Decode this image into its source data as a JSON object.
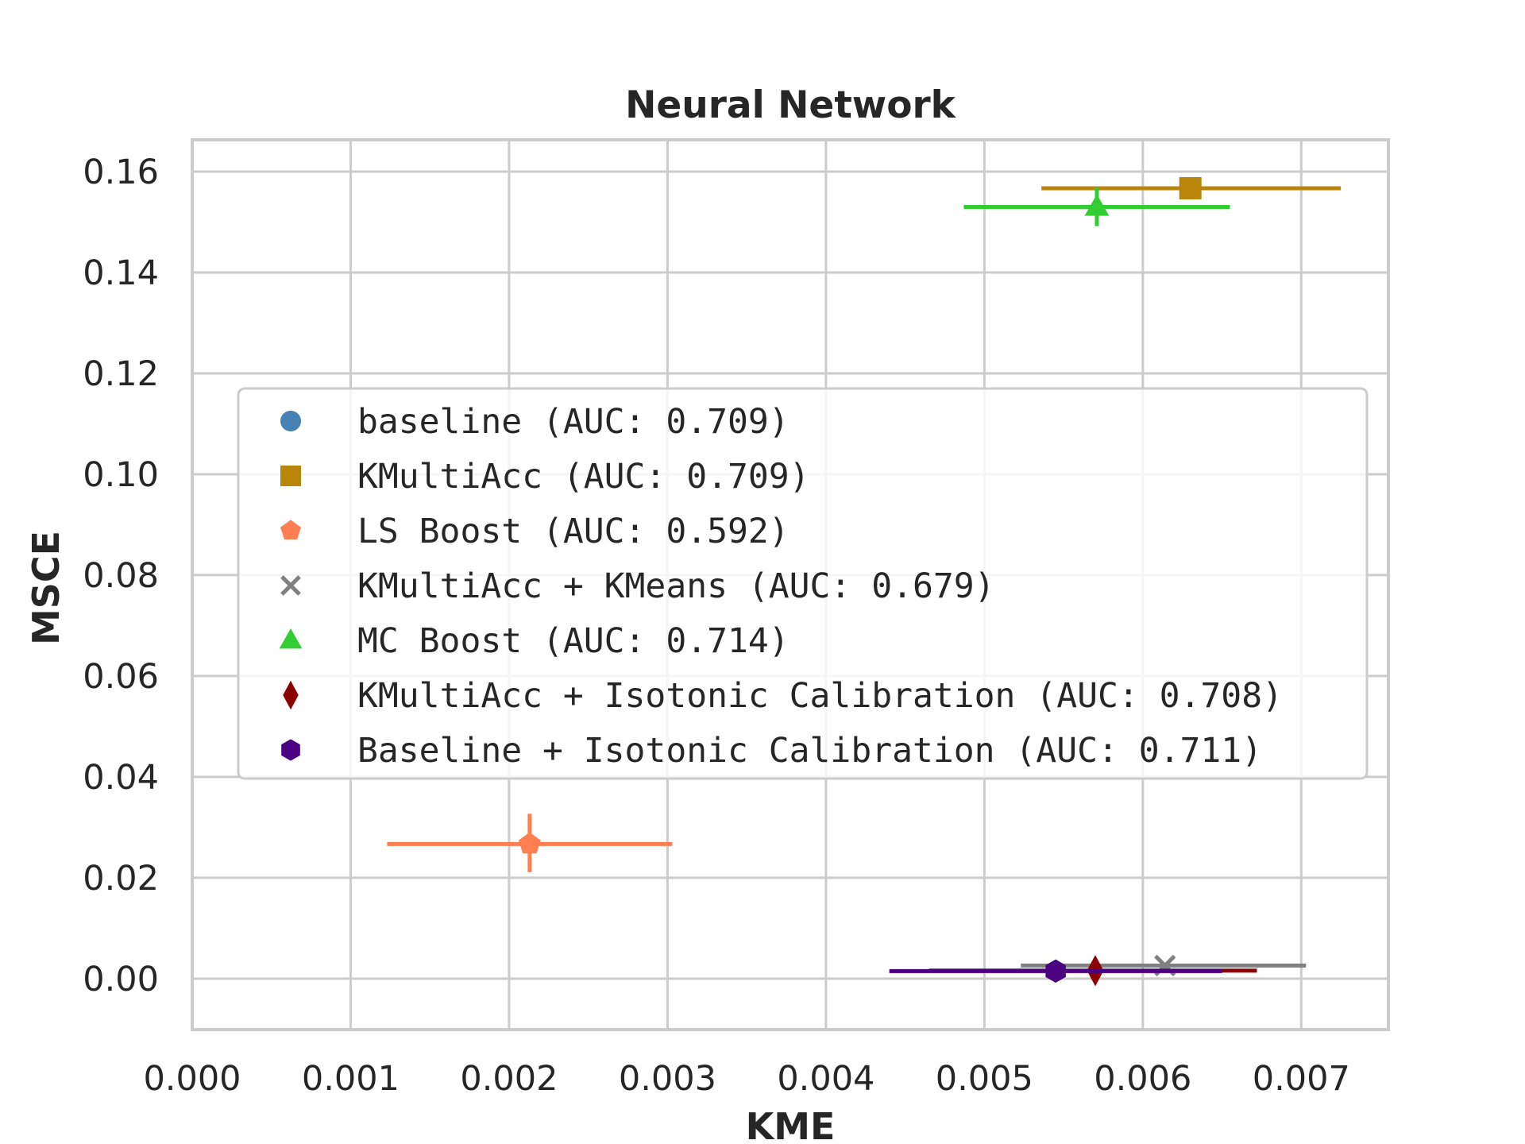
{
  "chart_data": {
    "type": "scatter",
    "title": "Neural Network",
    "xlabel": "KME",
    "ylabel": "MSCE",
    "xlim": [
      0.0,
      0.00755
    ],
    "ylim": [
      -0.0101,
      0.1663
    ],
    "xticks": [
      "0.000",
      "0.001",
      "0.002",
      "0.003",
      "0.004",
      "0.005",
      "0.006",
      "0.007"
    ],
    "yticks": [
      "0.00",
      "0.02",
      "0.04",
      "0.06",
      "0.08",
      "0.10",
      "0.12",
      "0.14",
      "0.16"
    ],
    "grid": true,
    "legend_position": "center",
    "series": [
      {
        "name": "baseline (AUC: 0.709)",
        "marker": "circle",
        "color": "#4682b4",
        "points": []
      },
      {
        "name": "KMultiAcc (AUC: 0.709)",
        "marker": "square",
        "color": "#b8860b",
        "points": [
          {
            "x": 0.0063,
            "y": 0.1567,
            "xerr": [
              0.00536,
              0.00725
            ],
            "yerr": [
              0.1555,
              0.1578
            ]
          }
        ]
      },
      {
        "name": "LS Boost (AUC: 0.592)",
        "marker": "pentagon",
        "color": "#ff7f50",
        "points": [
          {
            "x": 0.00213,
            "y": 0.0267,
            "xerr": [
              0.00123,
              0.00303
            ],
            "yerr": [
              0.0211,
              0.0327
            ]
          }
        ]
      },
      {
        "name": "KMultiAcc + KMeans (AUC: 0.679)",
        "marker": "x",
        "color": "#808080",
        "points": [
          {
            "x": 0.00614,
            "y": 0.0026,
            "xerr": [
              0.00523,
              0.00703
            ],
            "yerr": [
              0.0022,
              0.003
            ]
          }
        ]
      },
      {
        "name": "MC Boost (AUC: 0.714)",
        "marker": "triangle",
        "color": "#32cd32",
        "points": [
          {
            "x": 0.00571,
            "y": 0.153,
            "xerr": [
              0.00487,
              0.00655
            ],
            "yerr": [
              0.1492,
              0.1568
            ]
          }
        ]
      },
      {
        "name": "KMultiAcc + Isotonic Calibration (AUC: 0.708)",
        "marker": "diamond",
        "color": "#8b0000",
        "points": [
          {
            "x": 0.0057,
            "y": 0.0016,
            "xerr": [
              0.00465,
              0.00672
            ],
            "yerr": [
              0.0013,
              0.0019
            ]
          }
        ]
      },
      {
        "name": "Baseline + Isotonic Calibration (AUC: 0.711)",
        "marker": "hexagon",
        "color": "#4b0082",
        "points": [
          {
            "x": 0.00545,
            "y": 0.0015,
            "xerr": [
              0.0044,
              0.0065
            ],
            "yerr": [
              0.0012,
              0.0018
            ]
          }
        ]
      }
    ]
  }
}
